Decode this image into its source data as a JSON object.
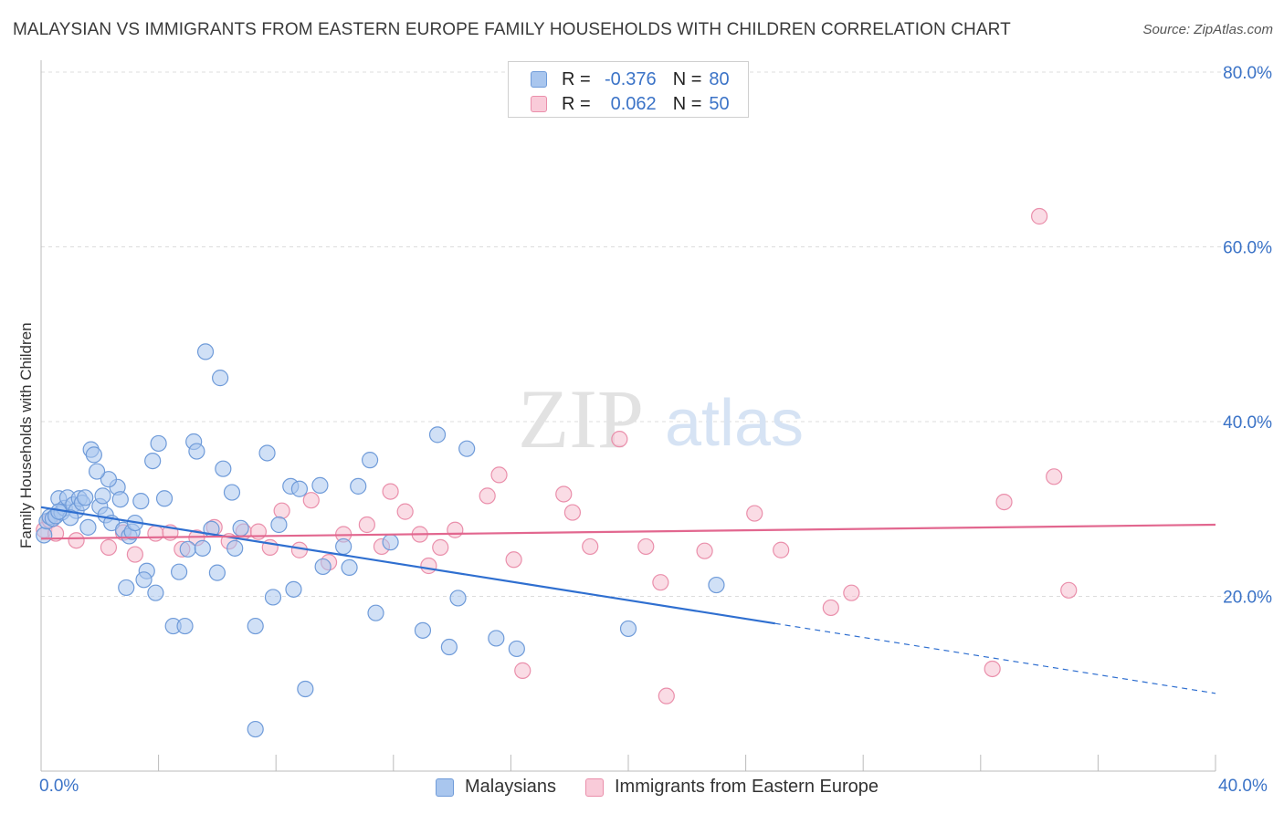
{
  "title": "MALAYSIAN VS IMMIGRANTS FROM EASTERN EUROPE FAMILY HOUSEHOLDS WITH CHILDREN CORRELATION CHART",
  "source": "Source: ZipAtlas.com",
  "watermark": {
    "zip": "ZIP",
    "atlas": "atlas"
  },
  "legend_top": {
    "rows": [
      {
        "r_label": "R =",
        "r_value": "-0.376",
        "n_label": "N =",
        "n_value": "80"
      },
      {
        "r_label": "R =",
        "r_value": "0.062",
        "n_label": "N =",
        "n_value": "50"
      }
    ]
  },
  "legend_bottom": {
    "series1": "Malaysians",
    "series2": "Immigrants from Eastern Europe"
  },
  "colors": {
    "blue_fill": "#a9c6ee",
    "blue_stroke": "#6f9bd9",
    "blue_line": "#2f6fd0",
    "pink_fill": "#f6bfd0",
    "pink_stroke": "#ea8fab",
    "pink_line": "#e2678f",
    "tick_text": "#3b73c7",
    "grid": "#dcdcdc"
  },
  "chart_data": {
    "type": "scatter",
    "title": "MALAYSIAN VS IMMIGRANTS FROM EASTERN EUROPE FAMILY HOUSEHOLDS WITH CHILDREN CORRELATION CHART",
    "xlabel": "",
    "ylabel": "Family Households with Children",
    "xlim": [
      0,
      40
    ],
    "ylim": [
      0,
      80
    ],
    "x_tick_labels": [
      "0.0%",
      "40.0%"
    ],
    "y_ticks": [
      20,
      40,
      60,
      80
    ],
    "y_tick_labels": [
      "20.0%",
      "40.0%",
      "60.0%",
      "80.0%"
    ],
    "grid": true,
    "legend_position": "top-center",
    "series": [
      {
        "name": "Malaysians",
        "r": -0.376,
        "n": 80,
        "trend": {
          "x": [
            0,
            25
          ],
          "y": [
            30.2,
            16.9
          ],
          "dashed_to": [
            40,
            8.9
          ]
        },
        "points": [
          [
            0.1,
            27
          ],
          [
            0.2,
            28.6
          ],
          [
            0.3,
            29.1
          ],
          [
            0.4,
            28.9
          ],
          [
            0.5,
            29.2
          ],
          [
            0.6,
            31.2
          ],
          [
            0.7,
            29.6
          ],
          [
            0.8,
            30.1
          ],
          [
            0.9,
            31.3
          ],
          [
            1.1,
            30.5
          ],
          [
            1.2,
            29.8
          ],
          [
            1.3,
            31.2
          ],
          [
            1.4,
            30.7
          ],
          [
            1.5,
            31.3
          ],
          [
            1.6,
            27.9
          ],
          [
            1.7,
            36.8
          ],
          [
            1.8,
            36.2
          ],
          [
            2.0,
            30.3
          ],
          [
            2.1,
            31.5
          ],
          [
            2.2,
            29.3
          ],
          [
            2.4,
            28.4
          ],
          [
            2.6,
            32.5
          ],
          [
            2.7,
            31.1
          ],
          [
            2.8,
            27.6
          ],
          [
            3.0,
            26.9
          ],
          [
            3.1,
            27.4
          ],
          [
            3.2,
            28.4
          ],
          [
            3.4,
            30.9
          ],
          [
            3.6,
            22.9
          ],
          [
            3.9,
            20.4
          ],
          [
            4.2,
            31.2
          ],
          [
            4.5,
            16.6
          ],
          [
            4.7,
            22.8
          ],
          [
            4.9,
            16.6
          ],
          [
            5.0,
            25.4
          ],
          [
            5.2,
            37.7
          ],
          [
            5.3,
            36.6
          ],
          [
            5.5,
            25.5
          ],
          [
            5.8,
            27.7
          ],
          [
            6.0,
            22.7
          ],
          [
            6.2,
            34.6
          ],
          [
            6.5,
            31.9
          ],
          [
            6.6,
            25.5
          ],
          [
            7.3,
            16.6
          ],
          [
            7.7,
            36.4
          ],
          [
            7.9,
            19.9
          ],
          [
            8.1,
            28.2
          ],
          [
            8.5,
            32.6
          ],
          [
            8.6,
            20.8
          ],
          [
            8.8,
            32.3
          ],
          [
            9.0,
            9.4
          ],
          [
            9.6,
            23.4
          ],
          [
            9.5,
            32.7
          ],
          [
            10.3,
            25.7
          ],
          [
            10.5,
            23.3
          ],
          [
            10.8,
            32.6
          ],
          [
            11.2,
            35.6
          ],
          [
            11.4,
            18.1
          ],
          [
            11.9,
            26.2
          ],
          [
            13.0,
            16.1
          ],
          [
            13.5,
            38.5
          ],
          [
            13.9,
            14.2
          ],
          [
            14.2,
            19.8
          ],
          [
            14.5,
            36.9
          ],
          [
            15.5,
            15.2
          ],
          [
            16.2,
            14.0
          ],
          [
            20.0,
            16.3
          ],
          [
            23.0,
            21.3
          ],
          [
            1.0,
            29.0
          ],
          [
            2.9,
            21.0
          ],
          [
            3.5,
            21.9
          ],
          [
            4.0,
            37.5
          ],
          [
            5.6,
            48.0
          ],
          [
            6.1,
            45.0
          ],
          [
            3.8,
            35.5
          ],
          [
            2.3,
            33.4
          ],
          [
            1.9,
            34.3
          ],
          [
            7.3,
            4.8
          ],
          [
            0.6,
            29.7
          ],
          [
            6.8,
            27.8
          ]
        ]
      },
      {
        "name": "Immigrants from Eastern Europe",
        "r": 0.062,
        "n": 50,
        "trend": {
          "x": [
            0,
            40
          ],
          "y": [
            26.6,
            28.2
          ]
        },
        "points": [
          [
            0.1,
            27.6
          ],
          [
            0.3,
            28.7
          ],
          [
            0.5,
            27.2
          ],
          [
            1.2,
            26.4
          ],
          [
            2.3,
            25.6
          ],
          [
            2.8,
            27.3
          ],
          [
            3.2,
            24.8
          ],
          [
            3.9,
            27.2
          ],
          [
            4.4,
            27.3
          ],
          [
            4.8,
            25.4
          ],
          [
            5.3,
            26.7
          ],
          [
            5.9,
            27.9
          ],
          [
            6.4,
            26.3
          ],
          [
            6.9,
            27.4
          ],
          [
            7.4,
            27.4
          ],
          [
            7.8,
            25.6
          ],
          [
            8.2,
            29.8
          ],
          [
            8.8,
            25.3
          ],
          [
            9.2,
            31.0
          ],
          [
            9.8,
            23.9
          ],
          [
            10.3,
            27.1
          ],
          [
            11.1,
            28.2
          ],
          [
            11.6,
            25.7
          ],
          [
            11.9,
            32.0
          ],
          [
            12.4,
            29.7
          ],
          [
            12.9,
            27.1
          ],
          [
            13.2,
            23.5
          ],
          [
            13.6,
            25.6
          ],
          [
            14.1,
            27.6
          ],
          [
            15.2,
            31.5
          ],
          [
            15.6,
            33.9
          ],
          [
            16.1,
            24.2
          ],
          [
            16.4,
            11.5
          ],
          [
            17.8,
            31.7
          ],
          [
            18.1,
            29.6
          ],
          [
            18.7,
            25.7
          ],
          [
            19.7,
            38.0
          ],
          [
            20.6,
            25.7
          ],
          [
            21.1,
            21.6
          ],
          [
            21.3,
            8.6
          ],
          [
            22.6,
            25.2
          ],
          [
            24.3,
            29.5
          ],
          [
            25.2,
            25.3
          ],
          [
            26.9,
            18.7
          ],
          [
            27.6,
            20.4
          ],
          [
            32.4,
            11.7
          ],
          [
            32.8,
            30.8
          ],
          [
            34.0,
            63.5
          ],
          [
            34.5,
            33.7
          ],
          [
            35.0,
            20.7
          ]
        ]
      }
    ]
  }
}
